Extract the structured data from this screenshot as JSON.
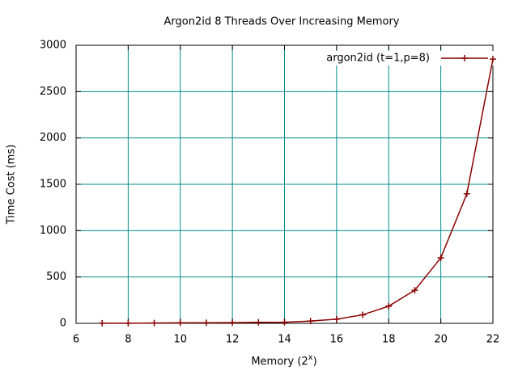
{
  "chart_data": {
    "type": "line",
    "title": "Argon2id 8 Threads Over Increasing Memory",
    "xlabel": [
      "Memory (2",
      "x",
      ")"
    ],
    "ylabel": "Time Cost (ms)",
    "x": [
      7,
      8,
      9,
      10,
      11,
      12,
      13,
      14,
      15,
      16,
      17,
      18,
      19,
      20,
      21,
      22
    ],
    "series": [
      {
        "name": "argon2id (t=1,p=8)",
        "color": "#8b0000",
        "values": [
          0.7,
          1.5,
          3,
          5,
          6,
          8,
          11,
          12,
          25,
          45,
          92,
          185,
          357,
          706,
          1398,
          2851
        ]
      }
    ],
    "xlim": [
      6,
      22
    ],
    "xticks": [
      6,
      8,
      10,
      12,
      14,
      16,
      18,
      20,
      22
    ],
    "ylim": [
      0,
      3000
    ],
    "yticks": [
      0,
      500,
      1000,
      1500,
      2000,
      2500,
      3000
    ],
    "grid": true,
    "grid_color": "#008b8b",
    "legend": "top-right"
  }
}
